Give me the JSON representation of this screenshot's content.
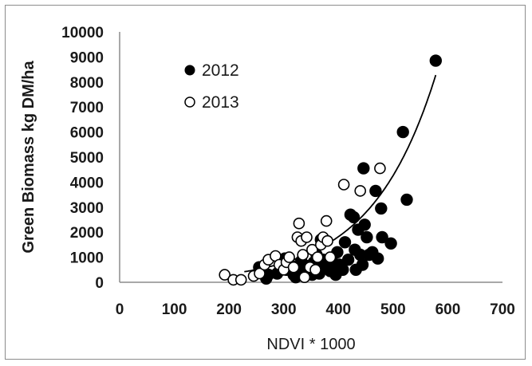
{
  "chart_data": {
    "type": "scatter",
    "xlabel": "NDVI * 1000",
    "ylabel": "Green Biomass kg DM/ha",
    "xlim": [
      0,
      700
    ],
    "ylim": [
      0,
      10000
    ],
    "x_ticks": [
      "0",
      "100",
      "200",
      "300",
      "400",
      "500",
      "600",
      "700"
    ],
    "y_ticks": [
      "0",
      "1000",
      "2000",
      "3000",
      "4000",
      "5000",
      "6000",
      "7000",
      "8000",
      "9000",
      "10000"
    ],
    "grid": false,
    "legend_position": "top-left",
    "series": [
      {
        "name": "2012",
        "marker": "filled-circle",
        "color": "#000000",
        "points": [
          [
            255,
            600
          ],
          [
            262,
            450
          ],
          [
            268,
            150
          ],
          [
            272,
            300
          ],
          [
            288,
            350
          ],
          [
            295,
            800
          ],
          [
            302,
            950
          ],
          [
            305,
            500
          ],
          [
            312,
            700
          ],
          [
            318,
            300
          ],
          [
            322,
            200
          ],
          [
            328,
            400
          ],
          [
            332,
            850
          ],
          [
            338,
            500
          ],
          [
            345,
            650
          ],
          [
            352,
            300
          ],
          [
            355,
            800
          ],
          [
            360,
            1100
          ],
          [
            362,
            500
          ],
          [
            365,
            350
          ],
          [
            368,
            1700
          ],
          [
            372,
            900
          ],
          [
            378,
            600
          ],
          [
            385,
            450
          ],
          [
            390,
            800
          ],
          [
            395,
            300
          ],
          [
            398,
            1200
          ],
          [
            402,
            700
          ],
          [
            408,
            500
          ],
          [
            412,
            1600
          ],
          [
            418,
            900
          ],
          [
            422,
            2700
          ],
          [
            428,
            2600
          ],
          [
            430,
            1300
          ],
          [
            432,
            500
          ],
          [
            436,
            2100
          ],
          [
            440,
            1100
          ],
          [
            444,
            700
          ],
          [
            446,
            4550
          ],
          [
            448,
            2300
          ],
          [
            452,
            1800
          ],
          [
            456,
            1100
          ],
          [
            462,
            1200
          ],
          [
            468,
            3650
          ],
          [
            472,
            950
          ],
          [
            478,
            2950
          ],
          [
            480,
            1800
          ],
          [
            496,
            1550
          ],
          [
            518,
            6000
          ],
          [
            525,
            3300
          ],
          [
            578,
            8850
          ]
        ]
      },
      {
        "name": "2013",
        "marker": "open-circle",
        "color": "#000000",
        "points": [
          [
            192,
            300
          ],
          [
            208,
            100
          ],
          [
            222,
            100
          ],
          [
            245,
            250
          ],
          [
            256,
            350
          ],
          [
            265,
            700
          ],
          [
            272,
            900
          ],
          [
            285,
            1050
          ],
          [
            292,
            700
          ],
          [
            300,
            500
          ],
          [
            305,
            800
          ],
          [
            310,
            1000
          ],
          [
            318,
            600
          ],
          [
            325,
            1800
          ],
          [
            328,
            2350
          ],
          [
            332,
            1650
          ],
          [
            335,
            1100
          ],
          [
            338,
            200
          ],
          [
            342,
            1800
          ],
          [
            348,
            600
          ],
          [
            352,
            1300
          ],
          [
            358,
            500
          ],
          [
            362,
            1000
          ],
          [
            368,
            1500
          ],
          [
            372,
            1800
          ],
          [
            378,
            2450
          ],
          [
            380,
            1650
          ],
          [
            385,
            1000
          ],
          [
            410,
            3900
          ],
          [
            440,
            3650
          ],
          [
            476,
            4550
          ]
        ]
      }
    ],
    "trendline": {
      "type": "exponential",
      "a": 60.5,
      "b": 0.00851,
      "x_range": [
        228,
        578
      ]
    }
  }
}
